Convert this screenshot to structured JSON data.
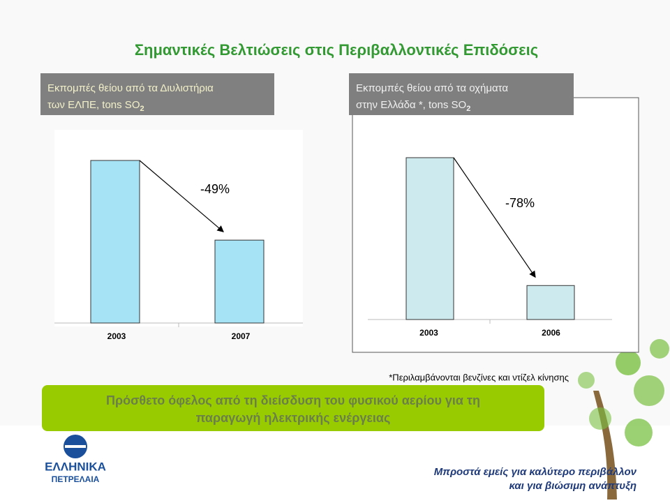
{
  "title": "Σημαντικές Βελτιώσεις στις Περιβαλλοντικές Επιδόσεις",
  "chart_data": [
    {
      "type": "bar",
      "title": "Εκπομπές θείου από τα Διυλιστήρια",
      "subtitle": "των ΕΛΠΕ, tons SO",
      "subscript": "2",
      "categories": [
        "2003",
        "2007"
      ],
      "values": [
        100,
        51
      ],
      "color": "#a6e3f5",
      "ylim": [
        0,
        100
      ],
      "annotation": "-49%"
    },
    {
      "type": "bar",
      "title": "Εκπομπές θείου από τα οχήματα",
      "subtitle": "στην Ελλάδα *, tons SO",
      "subscript": "2",
      "categories": [
        "2003",
        "2006"
      ],
      "values": [
        100,
        21
      ],
      "color": "#cdeaee",
      "ylim": [
        0,
        100
      ],
      "annotation": "-78%"
    }
  ],
  "footnote": "*Περιλαμβάνονται βενζίνες και ντίζελ κίνησης",
  "banner": [
    "Πρόσθετο όφελος από τη διείσδυση του φυσικού αερίου για τη",
    "παραγωγή ηλεκτρικής ενέργειας"
  ],
  "logo": [
    "ΕΛΛΗΝΙΚΑ",
    "ΠΕΤΡΕΛΑΙΑ"
  ],
  "slogan": [
    "Μπροστά εμείς για καλύτερο περιβάλλον",
    "και για βιώσιμη ανάπτυξη"
  ]
}
